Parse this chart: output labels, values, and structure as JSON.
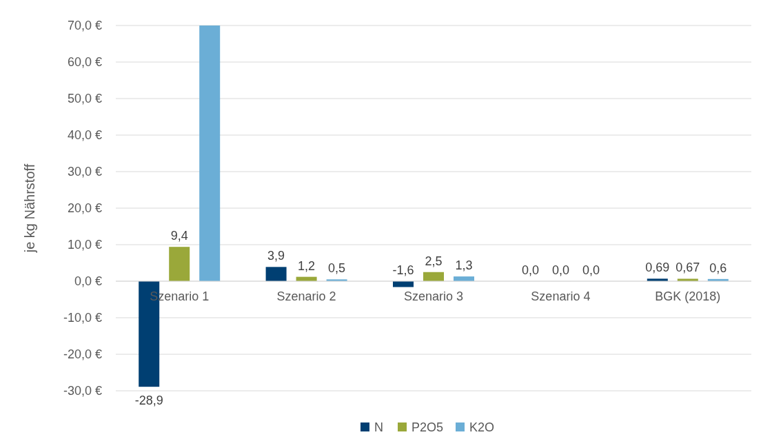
{
  "chart_data": {
    "type": "bar",
    "ylabel": "je kg Nährstoff",
    "categories": [
      "Szenario 1",
      "Szenario 2",
      "Szenario 3",
      "Szenario 4",
      "BGK (2018)"
    ],
    "series": [
      {
        "name": "N",
        "color": "#003f72",
        "values": [
          -28.9,
          3.9,
          -1.6,
          0.0,
          0.69
        ],
        "value_labels": [
          "-28,9",
          "3,9",
          "-1,6",
          "0,0",
          "0,69"
        ]
      },
      {
        "name": "P2O5",
        "color": "#9aa83a",
        "values": [
          9.4,
          1.2,
          2.5,
          0.0,
          0.67
        ],
        "value_labels": [
          "9,4",
          "1,2",
          "2,5",
          "0,0",
          "0,67"
        ]
      },
      {
        "name": "K2O",
        "color": "#6baed6",
        "values": [
          70,
          0.5,
          1.3,
          0.0,
          0.6
        ],
        "value_labels": [
          null,
          "0,5",
          "1,3",
          "0,0",
          "0,6"
        ]
      }
    ],
    "ylim": [
      -30,
      70
    ],
    "yticks": [
      {
        "value": -30,
        "label": "-30,0 €"
      },
      {
        "value": -20,
        "label": "-20,0 €"
      },
      {
        "value": -10,
        "label": "-10,0 €"
      },
      {
        "value": 0,
        "label": "0,0 €"
      },
      {
        "value": 10,
        "label": "10,0 €"
      },
      {
        "value": 20,
        "label": "20,0 €"
      },
      {
        "value": 30,
        "label": "30,0 €"
      },
      {
        "value": 40,
        "label": "40,0 €"
      },
      {
        "value": 50,
        "label": "50,0 €"
      },
      {
        "value": 60,
        "label": "60,0 €"
      },
      {
        "value": 70,
        "label": "70,0 €"
      }
    ],
    "grid": "y",
    "legend": "bottom"
  }
}
